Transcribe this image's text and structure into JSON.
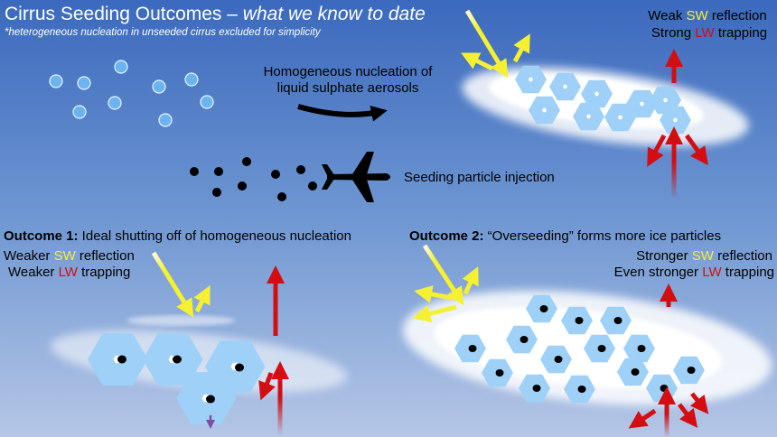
{
  "title": {
    "main": "Cirrus Seeding Outcomes – ",
    "italic": "what we know to date"
  },
  "subtitle": "*heterogeneous nucleation in unseeded cirrus excluded for simplicity",
  "homogeneous": {
    "line1": "Homogeneous nucleation of",
    "line2": "liquid sulphate aerosols"
  },
  "seeding_label": "Seeding particle injection",
  "top_panel": {
    "sw": {
      "pre": "Weak ",
      "key": "SW",
      "post": " reflection"
    },
    "lw": {
      "pre": "Strong ",
      "key": "LW",
      "post": " trapping"
    }
  },
  "outcome1": {
    "heading_bold": "Outcome 1:",
    "heading_rest": " Ideal shutting off of homogeneous nucleation",
    "sw": {
      "pre": "Weaker ",
      "key": "SW",
      "post": " reflection"
    },
    "lw": {
      "pre": "Weaker ",
      "key": "LW",
      "post": " trapping"
    }
  },
  "outcome2": {
    "heading_bold": "Outcome 2:",
    "heading_rest": " “Overseeding” forms more ice particles",
    "sw": {
      "pre": "Stronger ",
      "key": "SW",
      "post": " reflection"
    },
    "lw": {
      "pre": "Even stronger ",
      "key": "LW",
      "post": " trapping"
    }
  },
  "colors": {
    "sky_top": "#3b69bd",
    "sky_bottom": "#b5c6e6",
    "sw": "#f5f032",
    "lw": "#d40d12",
    "droplet": "#6cb4ef",
    "fall": "#7a4fa0"
  }
}
